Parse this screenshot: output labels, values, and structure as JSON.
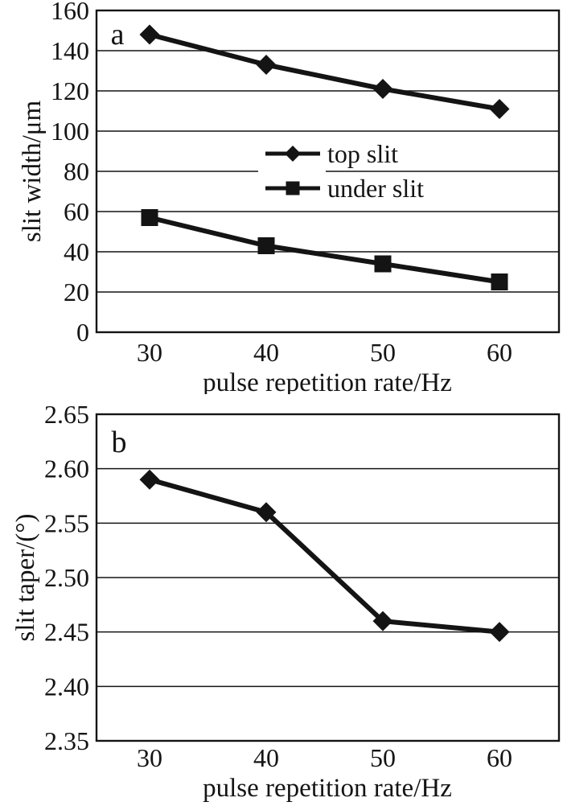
{
  "figure": {
    "background": "#ffffff",
    "ink": "#141414"
  },
  "chart_data": [
    {
      "type": "line",
      "panel_label": "a",
      "xlabel": "pulse repetition rate/Hz",
      "ylabel": "slit width/μm",
      "x": [
        30,
        40,
        50,
        60
      ],
      "xtick_labels": [
        "30",
        "40",
        "50",
        "60"
      ],
      "ylim": [
        0,
        160
      ],
      "yticks": [
        0,
        20,
        40,
        60,
        80,
        100,
        120,
        140,
        160
      ],
      "ytick_labels": [
        "0",
        "20",
        "40",
        "60",
        "80",
        "100",
        "120",
        "140",
        "160"
      ],
      "grid": "horizontal",
      "legend": {
        "position": "inside-upper-middle",
        "entries": [
          {
            "label": "top slit",
            "marker": "diamond"
          },
          {
            "label": "under slit",
            "marker": "square"
          }
        ]
      },
      "series": [
        {
          "name": "top slit",
          "marker": "diamond",
          "values": [
            148,
            133,
            121,
            111
          ]
        },
        {
          "name": "under slit",
          "marker": "square",
          "values": [
            57,
            43,
            34,
            25
          ]
        }
      ]
    },
    {
      "type": "line",
      "panel_label": "b",
      "xlabel": "pulse repetition rate/Hz",
      "ylabel": "slit taper/(°)",
      "x": [
        30,
        40,
        50,
        60
      ],
      "xtick_labels": [
        "30",
        "40",
        "50",
        "60"
      ],
      "ylim": [
        2.35,
        2.65
      ],
      "yticks": [
        2.35,
        2.4,
        2.45,
        2.5,
        2.55,
        2.6,
        2.65
      ],
      "ytick_labels": [
        "2.35",
        "2.40",
        "2.45",
        "2.50",
        "2.55",
        "2.60",
        "2.65"
      ],
      "grid": "horizontal",
      "legend": null,
      "series": [
        {
          "name": "slit taper",
          "marker": "diamond",
          "values": [
            2.59,
            2.56,
            2.46,
            2.45
          ]
        }
      ]
    }
  ]
}
